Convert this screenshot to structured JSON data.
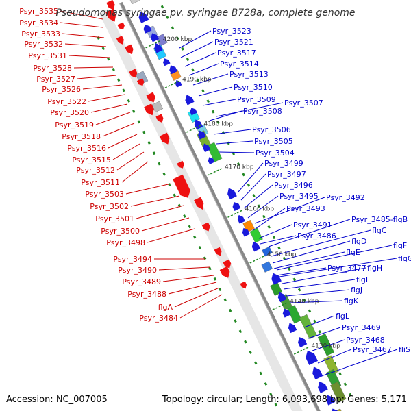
{
  "title": "Pseudomonas syringae pv. syringae B728a, complete genome",
  "footer": {
    "accession": "Accession: NC_007005",
    "summary": "Topology: circular; Length: 6,093,698 bp; Genes: 5,171"
  },
  "colors": {
    "forward": "#ee1111",
    "reverse": "#1a1adc",
    "backbone": "#888888",
    "left_label": "#cc0000",
    "right_label": "#0000cc",
    "tick": "#228822"
  },
  "scale_ticks": [
    "4200 kbp",
    "4190 kbp",
    "4180 kbp",
    "4170 kbp",
    "4160 kbp",
    "4150 kbp",
    "4140 kbp",
    "4130 kbp"
  ],
  "left_labels": [
    "Psyr_3535",
    "Psyr_3534",
    "Psyr_3533",
    "Psyr_3532",
    "Psyr_3531",
    "Psyr_3528",
    "Psyr_3527",
    "Psyr_3526",
    "Psyr_3522",
    "Psyr_3520",
    "Psyr_3519",
    "Psyr_3518",
    "Psyr_3516",
    "Psyr_3515",
    "Psyr_3512",
    "Psyr_3511",
    "Psyr_3503",
    "Psyr_3502",
    "Psyr_3501",
    "Psyr_3500",
    "Psyr_3498",
    "Psyr_3494",
    "Psyr_3490",
    "Psyr_3489",
    "Psyr_3488",
    "flgA",
    "Psyr_3484"
  ],
  "right_labels": [
    "Psyr_3523",
    "Psyr_3521",
    "Psyr_3517",
    "Psyr_3514",
    "Psyr_3513",
    "Psyr_3510",
    "Psyr_3509",
    "Psyr_3507",
    "Psyr_3508",
    "Psyr_3506",
    "Psyr_3505",
    "Psyr_3504",
    "Psyr_3499",
    "Psyr_3497",
    "Psyr_3496",
    "Psyr_3495",
    "Psyr_3492",
    "Psyr_3493",
    "Psyr_3485-flgB",
    "Psyr_3491",
    "flgC",
    "Psyr_3486",
    "flgD",
    "flgF",
    "flgE",
    "flgG",
    "Psyr_3477",
    "flgH",
    "flgI",
    "flgJ",
    "flgK",
    "flgL",
    "Psyr_3469",
    "Psyr_3468",
    "Psyr_3467",
    "fliS"
  ]
}
